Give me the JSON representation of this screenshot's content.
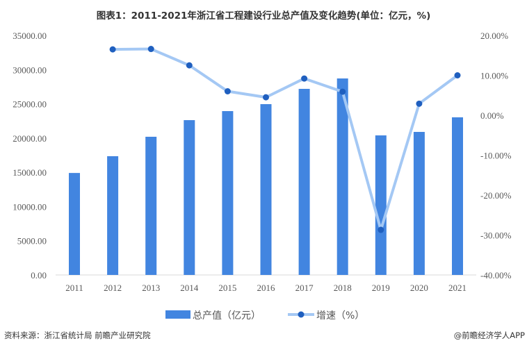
{
  "chart_data": {
    "type": "bar+line",
    "title": "图表1：2011-2021年浙江省工程建设行业总产值及变化趋势(单位：亿元，%)",
    "categories": [
      "2011",
      "2012",
      "2013",
      "2014",
      "2015",
      "2016",
      "2017",
      "2018",
      "2019",
      "2020",
      "2021"
    ],
    "series": [
      {
        "name": "总产值（亿元）",
        "type": "bar",
        "axis": "left",
        "color": "#4285e0",
        "values": [
          14900,
          17350,
          20190,
          22620,
          23940,
          24960,
          27190,
          28710,
          20390,
          20900,
          23030
        ]
      },
      {
        "name": "增速（%）",
        "type": "line",
        "axis": "right",
        "line_color": "#a4c8f4",
        "marker_color": "#1f5fbf",
        "values": [
          null,
          16.5,
          16.6,
          12.5,
          6.0,
          4.5,
          9.2,
          5.9,
          -28.7,
          2.9,
          10.0
        ]
      }
    ],
    "left_axis": {
      "ylim": [
        0,
        35000
      ],
      "ticks": [
        "0.00",
        "5000.00",
        "10000.00",
        "15000.00",
        "20000.00",
        "25000.00",
        "30000.00",
        "35000.00"
      ]
    },
    "right_axis": {
      "ylim": [
        -40,
        20
      ],
      "ticks": [
        "-40.00%",
        "-30.00%",
        "-20.00%",
        "-10.00%",
        "0.00%",
        "10.00%",
        "20.00%"
      ]
    },
    "grid": false,
    "legend_position": "bottom"
  },
  "footer": {
    "source": "资料来源：浙江省统计局 前瞻产业研究院",
    "credit": "@前瞻经济学人APP"
  }
}
